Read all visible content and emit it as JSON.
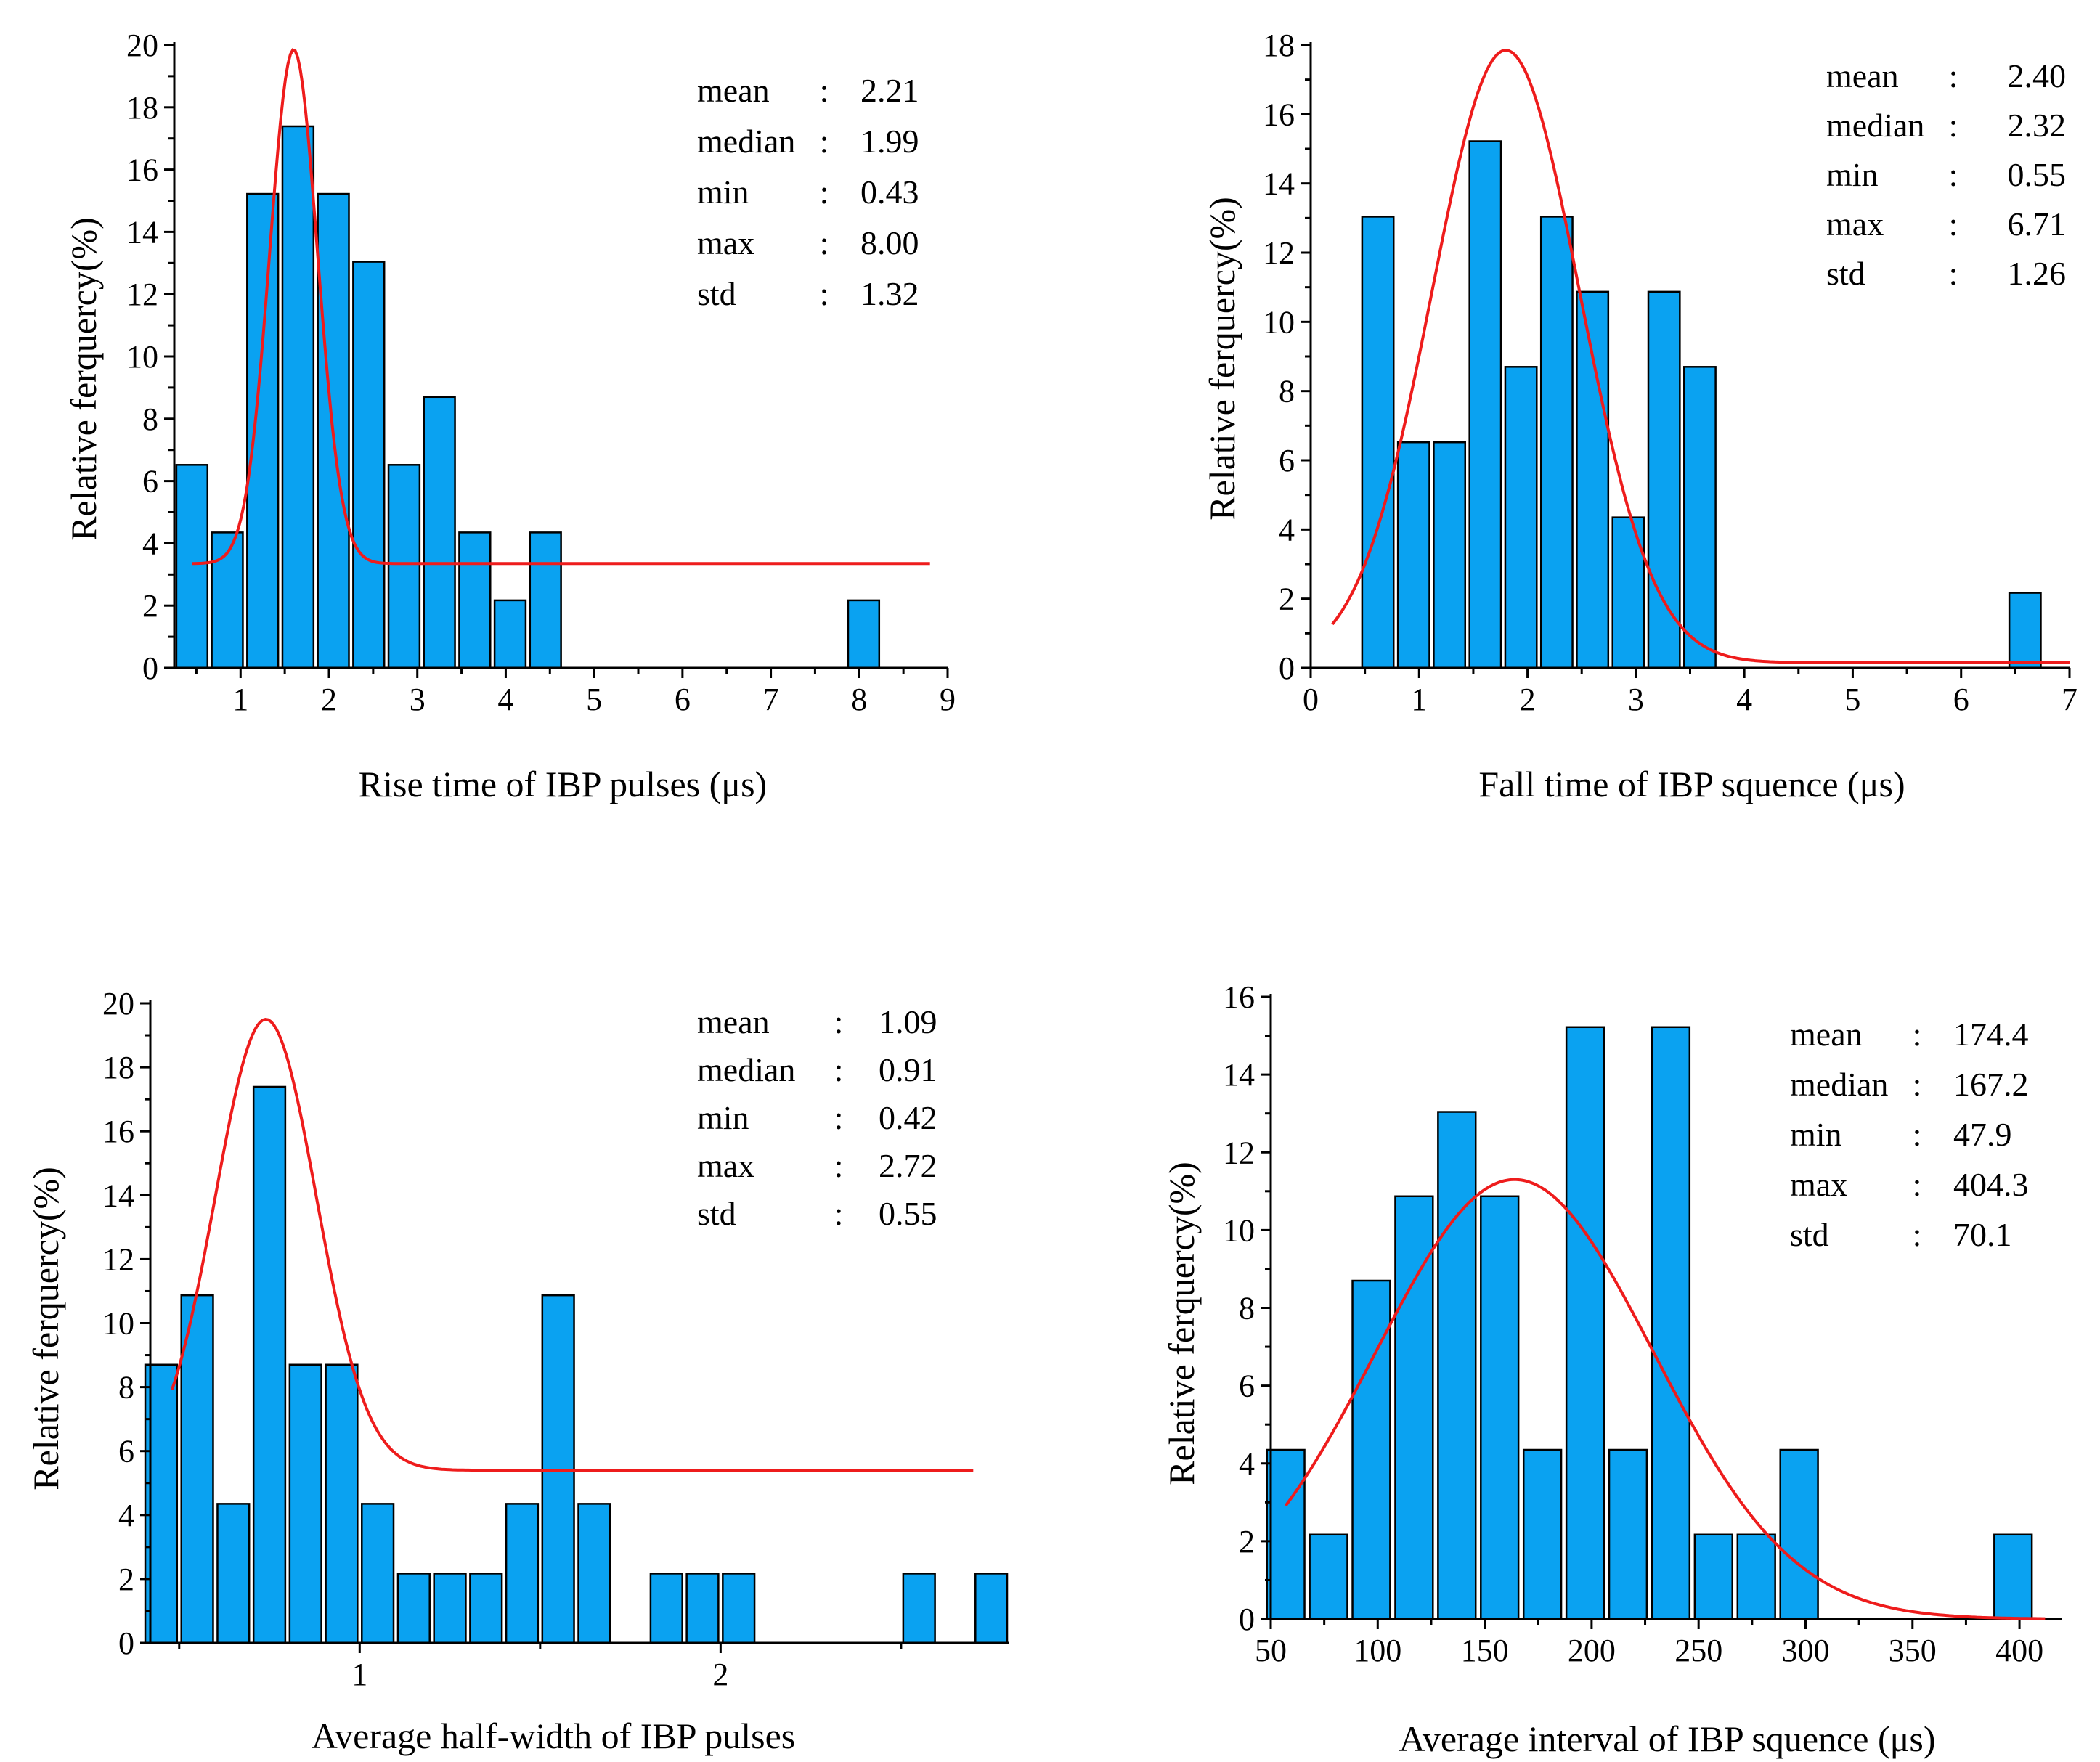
{
  "chart_data": [
    {
      "type": "bar",
      "id": "rise",
      "title": "",
      "xlabel": "Rise time of IBP pulses (μs)",
      "ylabel": "Relative ferquercy(%)",
      "xlim": [
        0.25,
        9
      ],
      "ylim": [
        0,
        20
      ],
      "xticks": [
        1,
        2,
        3,
        4,
        5,
        6,
        7,
        8,
        9
      ],
      "yticks": [
        0,
        2,
        4,
        6,
        8,
        10,
        12,
        14,
        16,
        18,
        20
      ],
      "bin_width": 0.4,
      "x": [
        0.45,
        0.85,
        1.25,
        1.65,
        2.05,
        2.45,
        2.85,
        3.25,
        3.65,
        4.05,
        4.45,
        8.05
      ],
      "values": [
        6.52,
        4.35,
        15.22,
        17.39,
        15.22,
        13.04,
        6.52,
        8.7,
        4.35,
        2.17,
        4.35,
        2.17
      ],
      "fit": {
        "type": "gauss",
        "y0": 3.35,
        "A": 16.5,
        "xc": 1.6,
        "w": 0.27,
        "range": [
          0.45,
          8.8
        ]
      },
      "stats": [
        {
          "label": "mean",
          "value": "2.21"
        },
        {
          "label": "median",
          "value": "1.99"
        },
        {
          "label": "min",
          "value": "0.43"
        },
        {
          "label": "max",
          "value": "8.00"
        },
        {
          "label": "std",
          "value": "1.32"
        }
      ]
    },
    {
      "type": "bar",
      "id": "fall",
      "title": "",
      "xlabel": "Fall time of IBP squence (μs)",
      "ylabel": "Relative ferquercy(%)",
      "xlim": [
        0,
        7
      ],
      "ylim": [
        0,
        18
      ],
      "xticks": [
        0,
        1,
        2,
        3,
        4,
        5,
        6,
        7
      ],
      "yticks": [
        0,
        2,
        4,
        6,
        8,
        10,
        12,
        14,
        16,
        18
      ],
      "bin_width": 0.33,
      "x": [
        0.62,
        0.95,
        1.28,
        1.61,
        1.94,
        2.27,
        2.6,
        2.93,
        3.26,
        3.59,
        3.92,
        6.59
      ],
      "values": [
        13.04,
        6.52,
        6.52,
        15.22,
        8.7,
        13.04,
        10.87,
        4.35,
        10.87,
        8.7,
        0,
        2.17
      ],
      "fit": {
        "type": "gauss",
        "y0": 0.15,
        "A": 17.7,
        "xc": 1.8,
        "w": 0.68,
        "range": [
          0.2,
          7.0
        ]
      },
      "stats": [
        {
          "label": "mean",
          "value": "2.40"
        },
        {
          "label": "median",
          "value": "2.32"
        },
        {
          "label": "min",
          "value": "0.55"
        },
        {
          "label": "max",
          "value": "6.71"
        },
        {
          "label": "std",
          "value": "1.26"
        }
      ]
    },
    {
      "type": "bar",
      "id": "halfwidth",
      "title": "",
      "xlabel": "Average half-width of IBP pulses",
      "ylabel": "Relative ferquercy(%)",
      "xlim": [
        0.42,
        2.8
      ],
      "ylim": [
        0,
        20
      ],
      "xticks": [
        1,
        2
      ],
      "yticks": [
        0,
        2,
        4,
        6,
        8,
        10,
        12,
        14,
        16,
        18,
        20
      ],
      "bin_width": 0.1,
      "x": [
        0.45,
        0.55,
        0.65,
        0.75,
        0.85,
        0.95,
        1.05,
        1.15,
        1.25,
        1.35,
        1.45,
        1.55,
        1.65,
        1.85,
        1.95,
        2.05,
        2.55,
        2.75
      ],
      "values": [
        8.7,
        10.87,
        4.35,
        17.39,
        8.7,
        8.7,
        4.35,
        2.17,
        2.17,
        2.17,
        4.35,
        10.87,
        4.35,
        2.17,
        2.17,
        2.17,
        2.17,
        2.17
      ],
      "fit": {
        "type": "gauss",
        "y0": 5.4,
        "A": 14.1,
        "xc": 0.74,
        "w": 0.14,
        "range": [
          0.48,
          2.7
        ]
      },
      "stats": [
        {
          "label": "mean",
          "value": "1.09"
        },
        {
          "label": "median",
          "value": "0.91"
        },
        {
          "label": "min",
          "value": "0.42"
        },
        {
          "label": "max",
          "value": "2.72"
        },
        {
          "label": "std",
          "value": "0.55"
        }
      ]
    },
    {
      "type": "bar",
      "id": "interval",
      "title": "",
      "xlabel": "Average interval of IBP squence (μs)",
      "ylabel": "Relative ferquercy(%)",
      "xlim": [
        50,
        420
      ],
      "ylim": [
        0,
        16
      ],
      "xticks": [
        50,
        100,
        150,
        200,
        250,
        300,
        350,
        400
      ],
      "yticks": [
        0,
        2,
        4,
        6,
        8,
        10,
        12,
        14,
        16
      ],
      "bin_width": 20,
      "x": [
        57,
        77,
        97,
        117,
        137,
        157,
        177,
        197,
        217,
        237,
        257,
        277,
        297,
        397
      ],
      "values": [
        4.35,
        2.17,
        8.7,
        10.87,
        13.04,
        10.87,
        4.35,
        15.22,
        4.35,
        15.22,
        2.17,
        2.17,
        4.35,
        2.17
      ],
      "fit": {
        "type": "gauss",
        "y0": 0,
        "A": 11.3,
        "xc": 164,
        "w": 65,
        "range": [
          57,
          412
        ]
      },
      "stats": [
        {
          "label": "mean",
          "value": "174.4"
        },
        {
          "label": "median",
          "value": "167.2"
        },
        {
          "label": "min",
          "value": "47.9"
        },
        {
          "label": "max",
          "value": "404.3"
        },
        {
          "label": "std",
          "value": "70.1"
        }
      ]
    }
  ]
}
